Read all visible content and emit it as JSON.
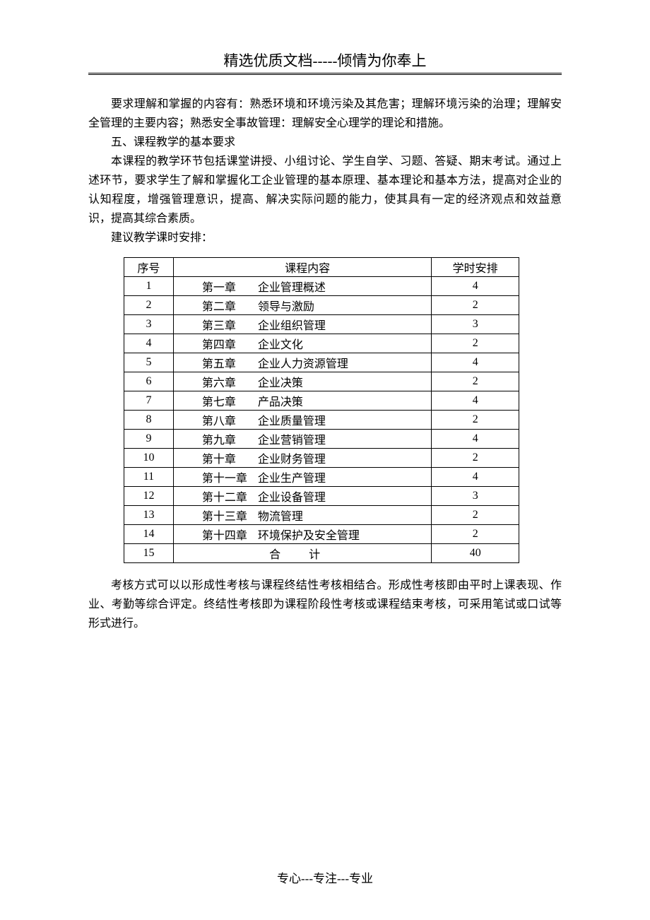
{
  "header": "精选优质文档-----倾情为你奉上",
  "para1": "要求理解和掌握的内容有：熟悉环境和环境污染及其危害；理解环境污染的治理；理解安全管理的主要内容；熟悉安全事故管理：理解安全心理学的理论和措施。",
  "section5": "五、课程教学的基本要求",
  "para2": "本课程的教学环节包括课堂讲授、小组讨论、学生自学、习题、答疑、期末考试。通过上述环节，要求学生了解和掌握化工企业管理的基本原理、基本理论和基本方法，提高对企业的认知程度，增强管理意识，提高、解决实际问题的能力，使其具有一定的经济观点和效益意识，提高其综合素质。",
  "para3": "建议教学课时安排：",
  "table": {
    "headers": [
      "序号",
      "课程内容",
      "学时安排"
    ],
    "rows": [
      {
        "seq": "1",
        "chapter": "第一章",
        "title": "企业管理概述",
        "hours": "4"
      },
      {
        "seq": "2",
        "chapter": "第二章",
        "title": "领导与激励",
        "hours": "2"
      },
      {
        "seq": "3",
        "chapter": "第三章",
        "title": "企业组织管理",
        "hours": "3"
      },
      {
        "seq": "4",
        "chapter": "第四章",
        "title": "企业文化",
        "hours": "2"
      },
      {
        "seq": "5",
        "chapter": "第五章",
        "title": "企业人力资源管理",
        "hours": "4"
      },
      {
        "seq": "6",
        "chapter": "第六章",
        "title": "企业决策",
        "hours": "2"
      },
      {
        "seq": "7",
        "chapter": "第七章",
        "title": "产品决策",
        "hours": "4"
      },
      {
        "seq": "8",
        "chapter": "第八章",
        "title": "企业质量管理",
        "hours": "2"
      },
      {
        "seq": "9",
        "chapter": "第九章",
        "title": "企业营销管理",
        "hours": "4"
      },
      {
        "seq": "10",
        "chapter": "第十章",
        "title": "企业财务管理",
        "hours": "2"
      },
      {
        "seq": "11",
        "chapter": "第十一章",
        "title": "企业生产管理",
        "hours": "4"
      },
      {
        "seq": "12",
        "chapter": "第十二章",
        "title": "企业设备管理",
        "hours": "3"
      },
      {
        "seq": "13",
        "chapter": "第十三章",
        "title": "物流管理",
        "hours": "2"
      },
      {
        "seq": "14",
        "chapter": "第十四章",
        "title": "环境保护及安全管理",
        "hours": "2"
      }
    ],
    "total": {
      "seq": "15",
      "label": "合 计",
      "hours": "40"
    }
  },
  "para4": "考核方式可以以形成性考核与课程终结性考核相结合。形成性考核即由平时上课表现、作业、考勤等综合评定。终结性考核即为课程阶段性考核或课程结束考核，可采用笔试或口试等形式进行。",
  "footer": "专心---专注---专业"
}
